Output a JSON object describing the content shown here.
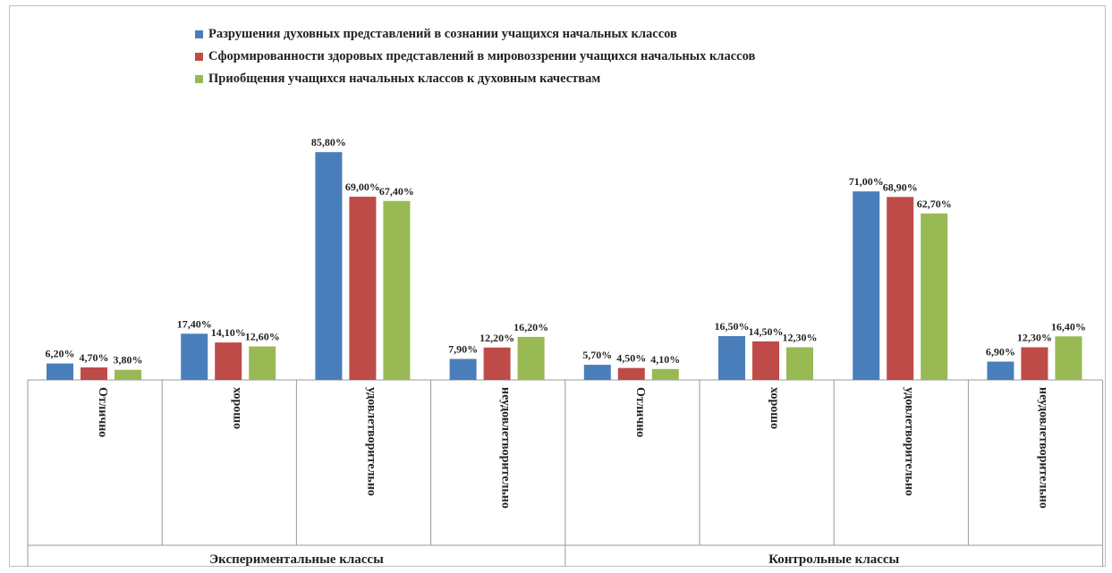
{
  "chart_data": {
    "type": "bar",
    "title": "",
    "legend_position": "top",
    "grid": false,
    "ylim": [
      0,
      100
    ],
    "groups": [
      {
        "label": "Экспериментальные классы",
        "categories": [
          "Отлично",
          "хорошо",
          "удовлетворительно",
          "неудовлетворительно"
        ]
      },
      {
        "label": "Контрольные классы",
        "categories": [
          "Отлично",
          "хорошо",
          "удовлетворительно",
          "неудовлетворительно"
        ]
      }
    ],
    "series": [
      {
        "name": "Разрушения духовных представлений в сознании учащихся начальных классов",
        "color": "#4a7ebb",
        "values": [
          6.2,
          17.4,
          85.8,
          7.9,
          5.7,
          16.5,
          71.0,
          6.9
        ],
        "labels": [
          "6,20%",
          "17,40%",
          "85,80%",
          "7,90%",
          "5,70%",
          "16,50%",
          "71,00%",
          "6,90%"
        ]
      },
      {
        "name": "Сформированности здоровых представлений в мировоззрении учащихся начальных классов",
        "color": "#be4b48",
        "values": [
          4.7,
          14.1,
          69.0,
          12.2,
          4.5,
          14.5,
          68.9,
          12.3
        ],
        "labels": [
          "4,70%",
          "14,10%",
          "69,00%",
          "12,20%",
          "4,50%",
          "14,50%",
          "68,90%",
          "12,30%"
        ]
      },
      {
        "name": "Приобщения учащихся начальных классов к духовным качествам",
        "color": "#98b954",
        "values": [
          3.8,
          12.6,
          67.4,
          16.2,
          4.1,
          12.3,
          62.7,
          16.4
        ],
        "labels": [
          "3,80%",
          "12,60%",
          "67,40%",
          "16,20%",
          "4,10%",
          "12,30%",
          "62,70%",
          "16,40%"
        ]
      }
    ]
  }
}
